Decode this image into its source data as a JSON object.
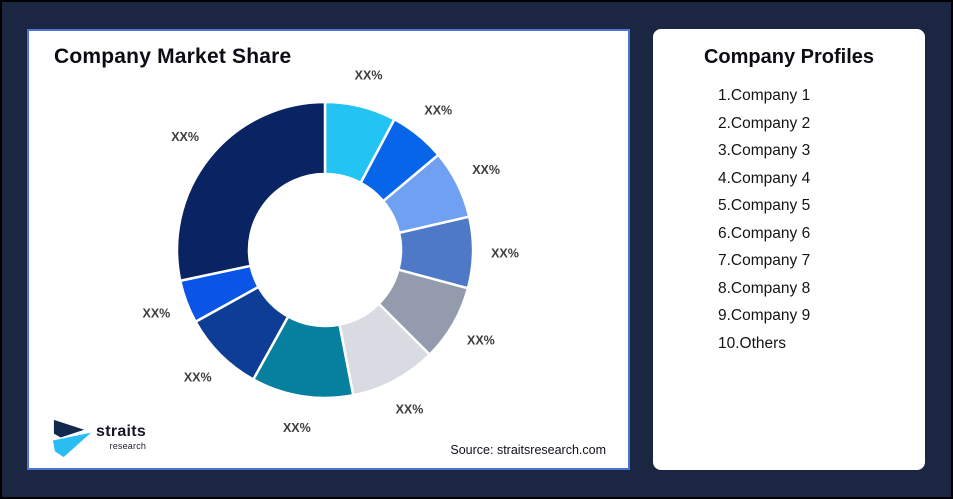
{
  "window": {
    "background": "#1B2642",
    "outer_border": "#000000"
  },
  "market_share_card": {
    "title": "Company Market Share",
    "source_note": "Source: straitsresearch.com",
    "border_color": "#4D73D8"
  },
  "logo": {
    "name": "straits",
    "subname": "research",
    "mark_navy": "#14294E",
    "mark_cyan": "#29BEEF"
  },
  "profiles_card": {
    "title": "Company Profiles",
    "items": [
      {
        "label": "1.Company 1"
      },
      {
        "label": "2.Company 2"
      },
      {
        "label": "3.Company 3"
      },
      {
        "label": "4.Company 4"
      },
      {
        "label": "5.Company 5"
      },
      {
        "label": "6.Company 6"
      },
      {
        "label": "7.Company 7"
      },
      {
        "label": "8.Company 8"
      },
      {
        "label": "9.Company 9"
      },
      {
        "label": "10.Others"
      }
    ]
  },
  "chart_data": {
    "type": "pie",
    "variant": "donut",
    "title": "Company Market Share",
    "legend_position": "none",
    "center": [
      296,
      219
    ],
    "outer_radius": 148,
    "inner_radius": 76,
    "label_radius": 180,
    "start_angle_deg": 0,
    "clockwise": true,
    "gap_stroke_color": "#FFFFFF",
    "segments": [
      {
        "company": "Company 1",
        "label": "XX%",
        "arc_deg": 28,
        "share_pct_of_circle": 7.8,
        "color": "#23C3F4"
      },
      {
        "company": "Company 2",
        "label": "XX%",
        "arc_deg": 22,
        "share_pct_of_circle": 6.1,
        "color": "#0765EA"
      },
      {
        "company": "Company 3",
        "label": "XX%",
        "arc_deg": 27,
        "share_pct_of_circle": 7.5,
        "color": "#6FA0F2"
      },
      {
        "company": "Company 4",
        "label": "XX%",
        "arc_deg": 28,
        "share_pct_of_circle": 7.8,
        "color": "#4E79C6"
      },
      {
        "company": "Company 5",
        "label": "XX%",
        "arc_deg": 30,
        "share_pct_of_circle": 8.3,
        "color": "#939BAC"
      },
      {
        "company": "Company 6",
        "label": "XX%",
        "arc_deg": 34,
        "share_pct_of_circle": 9.4,
        "color": "#D8DBE1"
      },
      {
        "company": "Company 7",
        "label": "XX%",
        "arc_deg": 40,
        "share_pct_of_circle": 11.1,
        "color": "#07809F"
      },
      {
        "company": "Company 8",
        "label": "XX%",
        "arc_deg": 32,
        "share_pct_of_circle": 8.9,
        "color": "#0D3D94"
      },
      {
        "company": "Company 9",
        "label": "XX%",
        "arc_deg": 17,
        "share_pct_of_circle": 4.7,
        "color": "#0A55E5"
      },
      {
        "company": "Others",
        "label": "XX%",
        "arc_deg": 102,
        "share_pct_of_circle": 28.4,
        "color": "#0A2463"
      }
    ]
  }
}
